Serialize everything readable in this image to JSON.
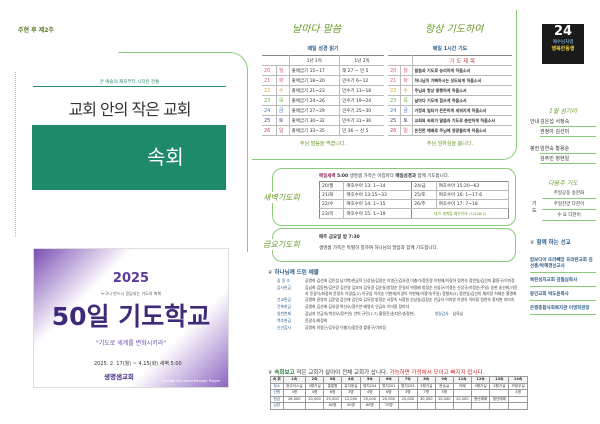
{
  "week": "주현 후 제2주",
  "cover": {
    "tagline": "큰 예술의 재로부터 시작된 전통",
    "title": "교회 안의 작은 교회",
    "subtitle": "속회"
  },
  "poster": {
    "year": "2025",
    "sub": "누구나 반드시 응답되는 기도의 축복",
    "title": "50일 기도학교",
    "quote": "\"기도로 세계를 변화시키라\"",
    "dates": "2025. 2. 17(월) ~ 4.15(화) 새벽 5:00",
    "church": "생명샘교회",
    "eng": "Change the world through Prayer"
  },
  "bible": {
    "heading": "날마다 말씀",
    "caption": "매일 성경 읽기",
    "col1": "1년 1독",
    "col2": "1년 2독",
    "rows": [
      {
        "d": "20",
        "w": "월",
        "a": "출애굽기 15~17",
        "b": "레 27 ~ 민 5",
        "c": "#e05a8a"
      },
      {
        "d": "21",
        "w": "화",
        "a": "출애굽기 18~20",
        "b": "민수기 6~12",
        "c": "#e05ab0"
      },
      {
        "d": "22",
        "w": "수",
        "a": "출애굽기 21~23",
        "b": "민수기 13~18",
        "c": "#e0a030"
      },
      {
        "d": "23",
        "w": "목",
        "a": "출애굽기 24~26",
        "b": "민수기 19~24",
        "c": "#6ab04a"
      },
      {
        "d": "24",
        "w": "금",
        "a": "출애굽기 27~29",
        "b": "민수기 25~30",
        "c": "#4a7ad0"
      },
      {
        "d": "25",
        "w": "토",
        "a": "출애굽기 30~32",
        "b": "민수기 31~36",
        "c": "#4a4a8a"
      },
      {
        "d": "26",
        "w": "일",
        "a": "출애굽기 33~35",
        "b": "민 36 ~ 신 5",
        "c": "#c04a6a"
      }
    ],
    "footer": "주님 말씀을 먹습니다."
  },
  "prayer": {
    "heading": "항상 기도하여",
    "caption": "매일 1시간 기도",
    "col": "기 도 제 목",
    "rows": [
      "말씀과 기도로 승리하게 하옵소서",
      "하나님이 기뻐하시는 성도되게 하옵소서",
      "주님과 항상 동행하게 하옵소서",
      "날마다 기도에 힘쓰게 하옵소서",
      "가정과 일터가 든든하게 세워지게 하옵소서",
      "교회와 속회가 말씀과 기도로 충만하게 하옵소서",
      "온전한 예배로 주님께 영광돌리게 하옵소서"
    ],
    "footer": "주님 임하심을 봅니다."
  },
  "dawn": {
    "label": "새벽기도회",
    "intro_bold": "매일새벽",
    "time": "5:00",
    "intro": "생명샘 가족은 아침마다",
    "intro2": "매일성경과",
    "intro3": "함께 기도합니다.",
    "rows": [
      [
        "20/월",
        "여호수아 13: 1~14",
        "24/금",
        "여호수아 15:20~63"
      ],
      [
        "21/화",
        "여호수아 13:15~33",
        "25/토",
        "여호수아 16: 1~17:6"
      ],
      [
        "22/수",
        "여호수아 14: 1~15",
        "26/주",
        "여호수아 17: 7~18"
      ],
      [
        "23/목",
        "여호수아 15: 1~19",
        "",
        "내가 새벽을 깨우리라 (시108:2)"
      ]
    ]
  },
  "friday": {
    "label": "금요기도회",
    "when": "매주 금요일 밤 7:30",
    "text": "생명샘 가족은 특별히 정하여 하나님의 말씀과 함께 기도합니다."
  },
  "offering": {
    "heading": "하나님께 드린 예물",
    "rows": [
      {
        "k": "십 일 조",
        "v": "공명희 김선애 김인섭 남기복/한금덕 신상실/김정순 이영근/김유경 이충기/정운경 이현재/이경아 정연숙 정연일/김선미 황용구/이미정"
      },
      {
        "k": "감사헌금",
        "v": "김남희 김동현/김은경 김인영 김보자 김유경 김순실/방정순 문길지 박정배 방정순 신상규/이경순 신상규/이정순(주일) 송현 송선희/가윤지 윤광식/최정희 윤정숙 이경심(2) 이규섭 이석승 이현재/이경아 이현재/이정아(주일) 정형지(2) 정연일/김선미 채미정 허태순 홍명화"
      },
      {
        "k": "선교헌금",
        "v": "공명희 권영미 김운엽 김인애 김인호 김유경 방정순 서정숙 서정원 신상실/김정순 안금자 이미영 이영숙 이미정 정연숙 정지현 지미숙"
      },
      {
        "k": "건축헌금",
        "v": "공명희 김선애 김유경 박선오/정수연 배영숙 안금숙 이미정 정미자"
      },
      {
        "k": "일천번제",
        "v": "김남지 안금숙(박선오/정수연) 안미 규민(1,7) 황용진(송지은/송정현)",
        "k2": "생일감사",
        "v2": "남옥남"
      },
      {
        "k": "맥추헌금",
        "v": "윤광식/최정희"
      },
      {
        "k": "신년감사",
        "v": "공명희 이영근/김유경 이충기/정운경 황용구/이미정"
      }
    ]
  },
  "report": {
    "heading": "속회보고",
    "note": "작은 교회가 살아야 전체 교회가 삽니다.",
    "note_red": "가능하면 가정에서 모이고 빠지지 맙시다.",
    "head": [
      "속 회",
      "1속",
      "2속",
      "3속",
      "4속",
      "5속",
      "6속",
      "7속",
      "8속",
      "9속",
      "11속",
      "12속",
      "13속",
      "14속"
    ],
    "rows": [
      [
        "장소",
        "현주라스실",
        "3평거실",
        "홍알원",
        "유지윤실",
        "명지204",
        "명지201",
        "명지203",
        "3평거실",
        "문승실",
        "카페",
        "3평거실",
        "3평거실",
        "카정우실"
      ],
      [
        "인원",
        "3명",
        "4명",
        "6명",
        "3명",
        "4명",
        "6명",
        "3명",
        "7명",
        "5명",
        "",
        "",
        "",
        "3명"
      ],
      [
        "헌금",
        "28,000",
        "20,000",
        "25,000",
        "12,000",
        "25,000",
        "20,000",
        "20,000",
        "30,000",
        "10,000",
        "10,000",
        "청년예배",
        "청년예배",
        ""
      ],
      [
        "심방",
        "",
        "",
        "60명",
        "30명",
        "60명",
        "70명",
        "",
        "",
        "",
        "",
        "",
        "",
        ""
      ]
    ]
  },
  "logo": {
    "num": "24",
    "l1": "예수님처럼",
    "l2": "행복한동행"
  },
  "servers": {
    "heading": "1월 섬기미",
    "rows": [
      {
        "k": "안내",
        "a": "김은섭 서정숙",
        "b": "권정아 김선미"
      },
      {
        "k": "봉헌",
        "a": "임연숙 황용순",
        "b": "김주민 정현일"
      }
    ]
  },
  "prayers_lead": {
    "heading": "다음주 기도",
    "k": "기도",
    "rows": [
      "주일공동 송한화",
      "주일찬양 다찬이",
      "수 요 다찬이"
    ]
  },
  "mission": {
    "heading": "함께 하는 선교",
    "items": [
      "캄보디아 뜨러뻬앙 프라란교회 김선흥/박혜경선교사",
      "복된성지교회 김철심목사",
      "동인교회 박도윤목사",
      "은평종합사회복지관 이영학관장"
    ]
  }
}
